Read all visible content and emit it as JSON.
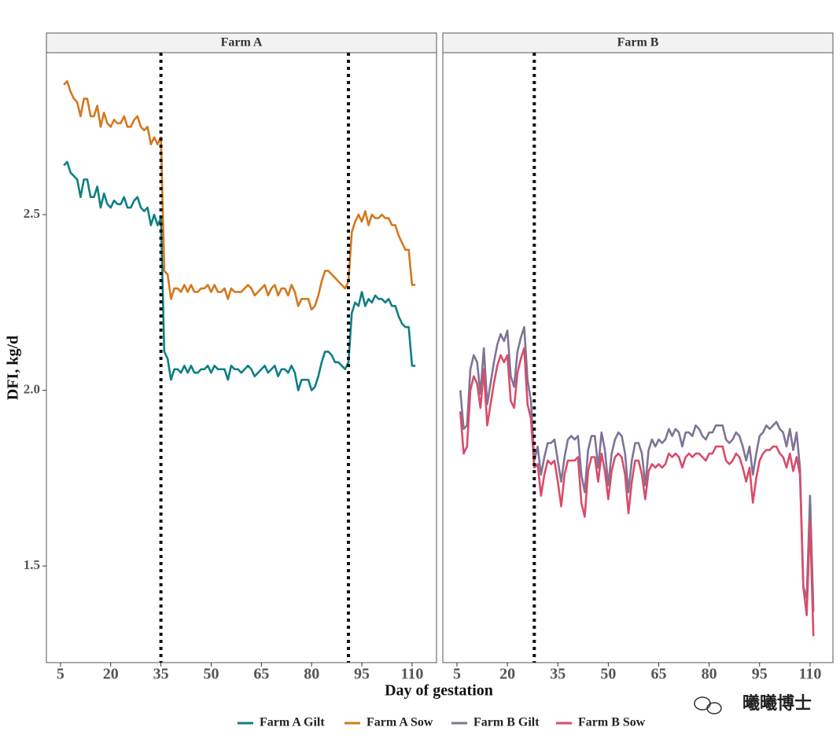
{
  "xlabel": "Day of gestation",
  "ylabel": "DFI, kg/d",
  "watermark": "曦曦博士",
  "chart_data": [
    {
      "type": "line",
      "title": "Farm A",
      "x": [
        6,
        7,
        8,
        9,
        10,
        11,
        12,
        13,
        14,
        15,
        16,
        17,
        18,
        19,
        20,
        21,
        22,
        23,
        24,
        25,
        26,
        27,
        28,
        29,
        30,
        31,
        32,
        33,
        34,
        35,
        36,
        37,
        38,
        39,
        40,
        41,
        42,
        43,
        44,
        45,
        46,
        47,
        48,
        49,
        50,
        51,
        52,
        53,
        54,
        55,
        56,
        57,
        58,
        59,
        60,
        61,
        62,
        63,
        64,
        65,
        66,
        67,
        68,
        69,
        70,
        71,
        72,
        73,
        74,
        75,
        76,
        77,
        78,
        79,
        80,
        81,
        82,
        83,
        84,
        85,
        86,
        87,
        88,
        89,
        90,
        91,
        92,
        93,
        94,
        95,
        96,
        97,
        98,
        99,
        100,
        101,
        102,
        103,
        104,
        105,
        106,
        107,
        108,
        109,
        110,
        111
      ],
      "xlim": [
        0.8,
        117.3
      ],
      "xticks": [
        5,
        20,
        35,
        50,
        65,
        80,
        95,
        110
      ],
      "ylim": [
        1.225,
        2.961
      ],
      "yticks": [
        1.5,
        {
          "value": 2,
          "label": "2.0"
        },
        2.5
      ],
      "vlines": [
        35,
        91
      ],
      "series": [
        {
          "name": "Farm A Gilt",
          "color": "#0f7f84",
          "values": [
            2.64,
            2.65,
            2.62,
            2.61,
            2.6,
            2.55,
            2.6,
            2.6,
            2.55,
            2.55,
            2.58,
            2.52,
            2.56,
            2.53,
            2.52,
            2.54,
            2.53,
            2.53,
            2.55,
            2.52,
            2.52,
            2.54,
            2.55,
            2.52,
            2.51,
            2.52,
            2.47,
            2.5,
            2.47,
            2.49,
            2.11,
            2.09,
            2.03,
            2.06,
            2.06,
            2.05,
            2.07,
            2.05,
            2.07,
            2.05,
            2.05,
            2.06,
            2.06,
            2.07,
            2.05,
            2.07,
            2.06,
            2.06,
            2.06,
            2.03,
            2.07,
            2.06,
            2.06,
            2.05,
            2.06,
            2.07,
            2.06,
            2.04,
            2.05,
            2.06,
            2.07,
            2.05,
            2.06,
            2.07,
            2.04,
            2.06,
            2.06,
            2.05,
            2.07,
            2.05,
            2.0,
            2.03,
            2.03,
            2.03,
            2.0,
            2.01,
            2.04,
            2.08,
            2.11,
            2.11,
            2.1,
            2.08,
            2.08,
            2.07,
            2.06,
            2.08,
            2.22,
            2.25,
            2.24,
            2.28,
            2.24,
            2.26,
            2.25,
            2.27,
            2.26,
            2.26,
            2.25,
            2.26,
            2.24,
            2.24,
            2.21,
            2.19,
            2.18,
            2.18,
            2.07,
            2.07
          ]
        },
        {
          "name": "Farm A Sow",
          "color": "#d2791e",
          "values": [
            2.87,
            2.88,
            2.85,
            2.83,
            2.82,
            2.78,
            2.83,
            2.83,
            2.78,
            2.78,
            2.81,
            2.75,
            2.79,
            2.76,
            2.75,
            2.77,
            2.76,
            2.76,
            2.78,
            2.75,
            2.75,
            2.77,
            2.78,
            2.75,
            2.74,
            2.75,
            2.7,
            2.72,
            2.7,
            2.72,
            2.34,
            2.33,
            2.26,
            2.29,
            2.29,
            2.28,
            2.3,
            2.28,
            2.3,
            2.28,
            2.28,
            2.29,
            2.29,
            2.3,
            2.28,
            2.3,
            2.28,
            2.28,
            2.29,
            2.26,
            2.29,
            2.28,
            2.28,
            2.28,
            2.29,
            2.3,
            2.29,
            2.27,
            2.28,
            2.29,
            2.3,
            2.27,
            2.29,
            2.3,
            2.27,
            2.29,
            2.29,
            2.27,
            2.3,
            2.28,
            2.24,
            2.26,
            2.26,
            2.26,
            2.23,
            2.24,
            2.27,
            2.31,
            2.34,
            2.34,
            2.33,
            2.32,
            2.31,
            2.3,
            2.29,
            2.31,
            2.45,
            2.48,
            2.5,
            2.48,
            2.51,
            2.47,
            2.5,
            2.49,
            2.49,
            2.5,
            2.49,
            2.49,
            2.47,
            2.47,
            2.44,
            2.42,
            2.4,
            2.4,
            2.3,
            2.3
          ]
        }
      ]
    },
    {
      "type": "line",
      "title": "Farm B",
      "x": [
        6,
        7,
        8,
        9,
        10,
        11,
        12,
        13,
        14,
        15,
        16,
        17,
        18,
        19,
        20,
        21,
        22,
        23,
        24,
        25,
        26,
        27,
        28,
        29,
        30,
        31,
        32,
        33,
        34,
        35,
        36,
        37,
        38,
        39,
        40,
        41,
        42,
        43,
        44,
        45,
        46,
        47,
        48,
        49,
        50,
        51,
        52,
        53,
        54,
        55,
        56,
        57,
        58,
        59,
        60,
        61,
        62,
        63,
        64,
        65,
        66,
        67,
        68,
        69,
        70,
        71,
        72,
        73,
        74,
        75,
        76,
        77,
        78,
        79,
        80,
        81,
        82,
        83,
        84,
        85,
        86,
        87,
        88,
        89,
        90,
        91,
        92,
        93,
        94,
        95,
        96,
        97,
        98,
        99,
        100,
        101,
        102,
        103,
        104,
        105,
        106,
        107,
        108,
        109,
        110,
        111
      ],
      "xlim": [
        0.8,
        116.8
      ],
      "xticks": [
        5,
        20,
        35,
        50,
        65,
        80,
        95,
        110
      ],
      "ylim": [
        1.225,
        2.961
      ],
      "vlines": [
        28
      ],
      "series": [
        {
          "name": "Farm B Gilt",
          "color": "#7e7496",
          "values": [
            2.0,
            1.89,
            1.9,
            2.06,
            2.1,
            2.08,
            1.99,
            2.12,
            1.96,
            2.02,
            2.08,
            2.13,
            2.16,
            2.14,
            2.17,
            2.04,
            2.01,
            2.11,
            2.15,
            2.18,
            2.03,
            1.97,
            1.8,
            1.84,
            1.76,
            1.81,
            1.85,
            1.85,
            1.86,
            1.8,
            1.74,
            1.81,
            1.86,
            1.87,
            1.86,
            1.87,
            1.76,
            1.71,
            1.83,
            1.87,
            1.87,
            1.78,
            1.88,
            1.83,
            1.73,
            1.82,
            1.86,
            1.88,
            1.87,
            1.82,
            1.71,
            1.8,
            1.85,
            1.85,
            1.82,
            1.73,
            1.83,
            1.86,
            1.84,
            1.86,
            1.85,
            1.86,
            1.89,
            1.87,
            1.89,
            1.88,
            1.84,
            1.88,
            1.88,
            1.87,
            1.9,
            1.89,
            1.87,
            1.86,
            1.88,
            1.88,
            1.9,
            1.9,
            1.9,
            1.86,
            1.85,
            1.86,
            1.88,
            1.87,
            1.84,
            1.8,
            1.84,
            1.76,
            1.82,
            1.87,
            1.88,
            1.9,
            1.89,
            1.9,
            1.91,
            1.89,
            1.88,
            1.84,
            1.89,
            1.83,
            1.88,
            1.78,
            1.44,
            1.41,
            1.7,
            1.37
          ]
        },
        {
          "name": "Farm B Sow",
          "color": "#d94c6a",
          "values": [
            1.94,
            1.82,
            1.84,
            2.0,
            2.04,
            2.02,
            1.95,
            2.06,
            1.9,
            1.96,
            2.02,
            2.07,
            2.1,
            2.08,
            2.1,
            1.97,
            1.95,
            2.05,
            2.09,
            2.12,
            1.96,
            1.92,
            1.78,
            1.79,
            1.7,
            1.76,
            1.8,
            1.79,
            1.8,
            1.74,
            1.67,
            1.76,
            1.8,
            1.8,
            1.8,
            1.81,
            1.68,
            1.64,
            1.77,
            1.81,
            1.81,
            1.74,
            1.82,
            1.77,
            1.69,
            1.77,
            1.81,
            1.82,
            1.81,
            1.76,
            1.65,
            1.74,
            1.8,
            1.8,
            1.76,
            1.69,
            1.77,
            1.79,
            1.78,
            1.79,
            1.78,
            1.79,
            1.82,
            1.81,
            1.82,
            1.81,
            1.78,
            1.81,
            1.82,
            1.81,
            1.82,
            1.82,
            1.81,
            1.8,
            1.82,
            1.82,
            1.84,
            1.84,
            1.84,
            1.8,
            1.79,
            1.8,
            1.82,
            1.81,
            1.78,
            1.74,
            1.78,
            1.68,
            1.75,
            1.8,
            1.82,
            1.83,
            1.83,
            1.84,
            1.84,
            1.82,
            1.81,
            1.78,
            1.82,
            1.77,
            1.81,
            1.76,
            1.44,
            1.36,
            1.63,
            1.3
          ]
        }
      ]
    }
  ]
}
